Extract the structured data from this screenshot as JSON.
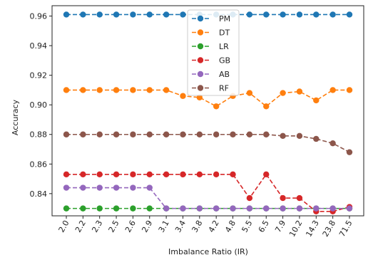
{
  "chart_data": {
    "type": "line",
    "xlabel": "Imbalance Ratio (IR)",
    "ylabel": "Accuracy",
    "categories": [
      "2.0",
      "2.2",
      "2.3",
      "2.5",
      "2.6",
      "2.9",
      "3.1",
      "3.4",
      "3.8",
      "4.2",
      "4.8",
      "5.5",
      "6.5",
      "7.9",
      "10.2",
      "14.3",
      "23.8",
      "71.5"
    ],
    "ylim": [
      0.825,
      0.967
    ],
    "yticks": [
      0.84,
      0.86,
      0.88,
      0.9,
      0.92,
      0.94,
      0.96
    ],
    "ytick_labels": [
      "0.84",
      "0.86",
      "0.88",
      "0.90",
      "0.92",
      "0.94",
      "0.96"
    ],
    "grid": false,
    "legend_position": "upper-center",
    "series": [
      {
        "name": "PM",
        "color": "#1f77b4",
        "values": [
          0.961,
          0.961,
          0.961,
          0.961,
          0.961,
          0.961,
          0.961,
          0.961,
          0.961,
          0.961,
          0.961,
          0.961,
          0.961,
          0.961,
          0.961,
          0.961,
          0.961,
          0.961
        ]
      },
      {
        "name": "DT",
        "color": "#ff7f0e",
        "values": [
          0.91,
          0.91,
          0.91,
          0.91,
          0.91,
          0.91,
          0.91,
          0.906,
          0.905,
          0.899,
          0.906,
          0.908,
          0.899,
          0.908,
          0.909,
          0.903,
          0.91,
          0.91
        ]
      },
      {
        "name": "LR",
        "color": "#2ca02c",
        "values": [
          0.83,
          0.83,
          0.83,
          0.83,
          0.83,
          0.83,
          0.83,
          0.83,
          0.83,
          0.83,
          0.83,
          0.83,
          0.83,
          0.83,
          0.83,
          0.83,
          0.83,
          0.83
        ]
      },
      {
        "name": "GB",
        "color": "#d62728",
        "values": [
          0.853,
          0.853,
          0.853,
          0.853,
          0.853,
          0.853,
          0.853,
          0.853,
          0.853,
          0.853,
          0.853,
          0.837,
          0.853,
          0.837,
          0.837,
          0.828,
          0.828,
          0.831
        ]
      },
      {
        "name": "AB",
        "color": "#9467bd",
        "values": [
          0.844,
          0.844,
          0.844,
          0.844,
          0.844,
          0.844,
          0.83,
          0.83,
          0.83,
          0.83,
          0.83,
          0.83,
          0.83,
          0.83,
          0.83,
          0.83,
          0.83,
          0.83
        ]
      },
      {
        "name": "RF",
        "color": "#8c564b",
        "values": [
          0.88,
          0.88,
          0.88,
          0.88,
          0.88,
          0.88,
          0.88,
          0.88,
          0.88,
          0.88,
          0.88,
          0.88,
          0.88,
          0.879,
          0.879,
          0.877,
          0.874,
          0.868
        ]
      }
    ]
  }
}
